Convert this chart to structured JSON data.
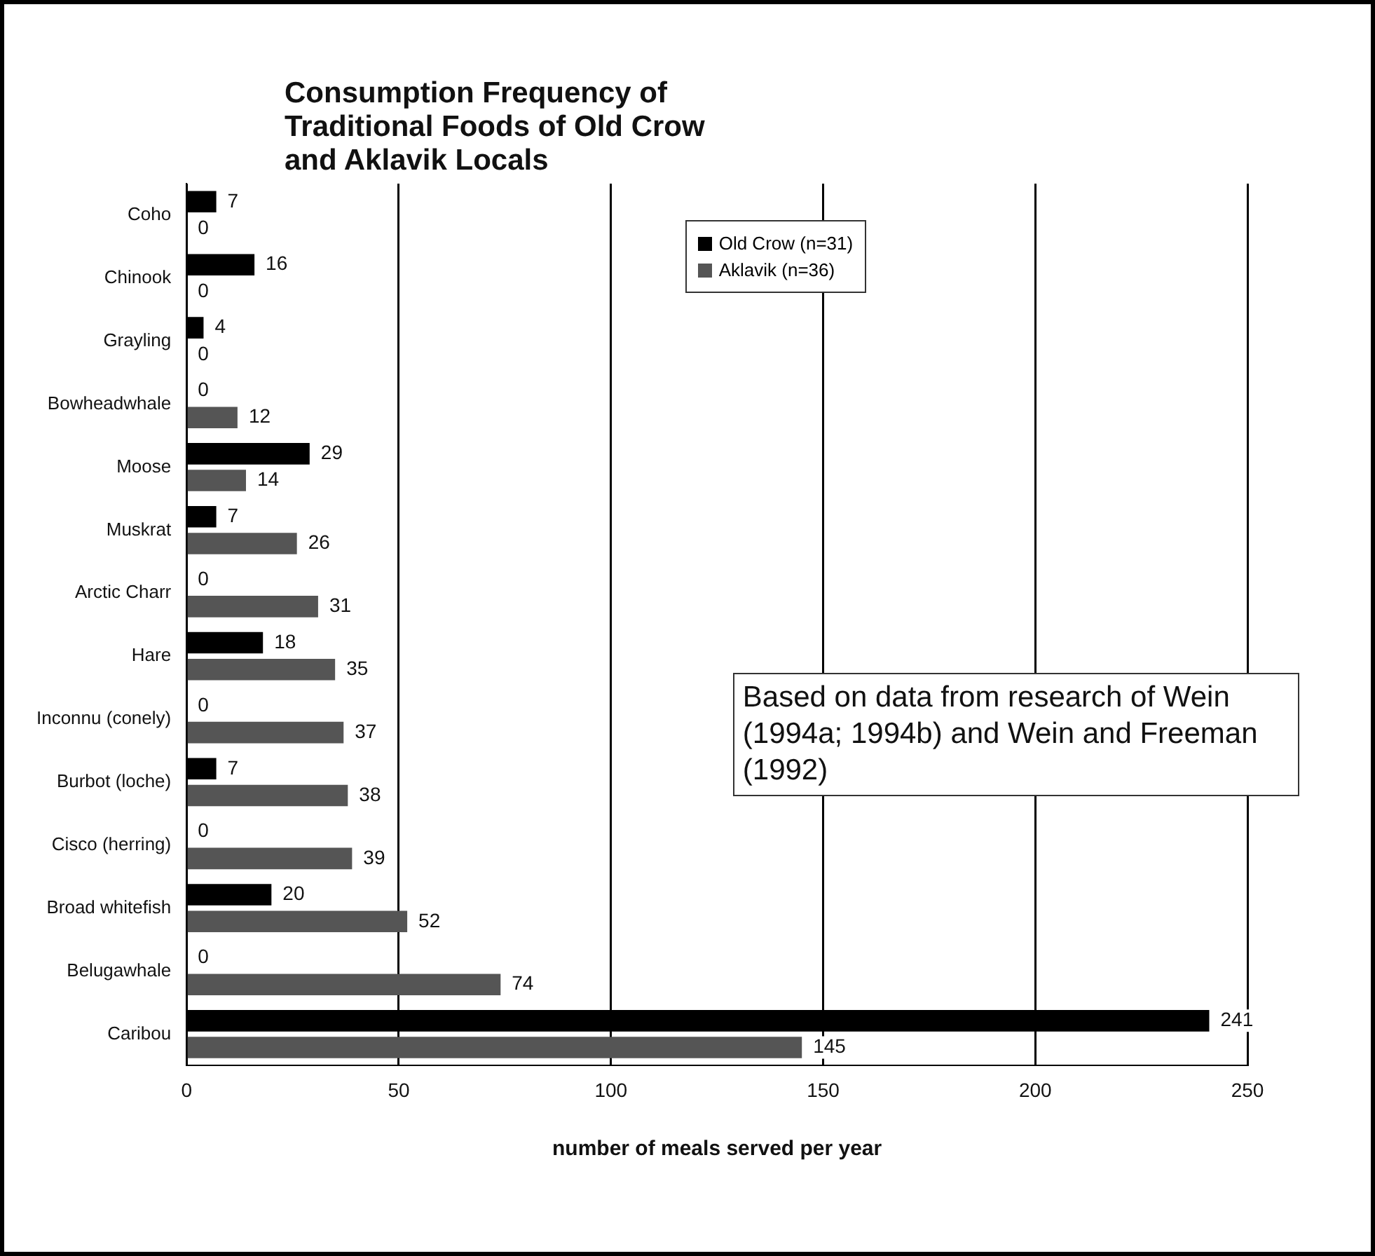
{
  "chart_data": {
    "type": "bar",
    "orientation": "horizontal",
    "title": "Consumption Frequency of Traditional Foods of Old Crow and Aklavik Locals",
    "xlabel": "number of meals served per year",
    "categories": [
      "Coho",
      "Chinook",
      "Grayling",
      "Bowheadwhale",
      "Moose",
      "Muskrat",
      "Arctic Charr",
      "Hare",
      "Inconnu (conely)",
      "Burbot (loche)",
      "Cisco (herring)",
      "Broad whitefish",
      "Belugawhale",
      "Caribou"
    ],
    "series": [
      {
        "name": "Old Crow (n=31)",
        "color": "#000000",
        "values": [
          7,
          16,
          4,
          0,
          29,
          7,
          0,
          18,
          0,
          7,
          0,
          20,
          0,
          241
        ]
      },
      {
        "name": "Aklavik  (n=36)",
        "color": "#555555",
        "values": [
          0,
          0,
          0,
          12,
          14,
          26,
          31,
          35,
          37,
          38,
          39,
          52,
          74,
          145
        ]
      }
    ],
    "xlim": [
      0,
      250
    ],
    "xticks": [
      0,
      50,
      100,
      150,
      200,
      250
    ],
    "grid": "x",
    "legend": "top right",
    "data_labels": true,
    "annotations": [
      "Based on data from research of Wein (1994a; 1994b) and Wein and Freeman (1992)"
    ]
  }
}
